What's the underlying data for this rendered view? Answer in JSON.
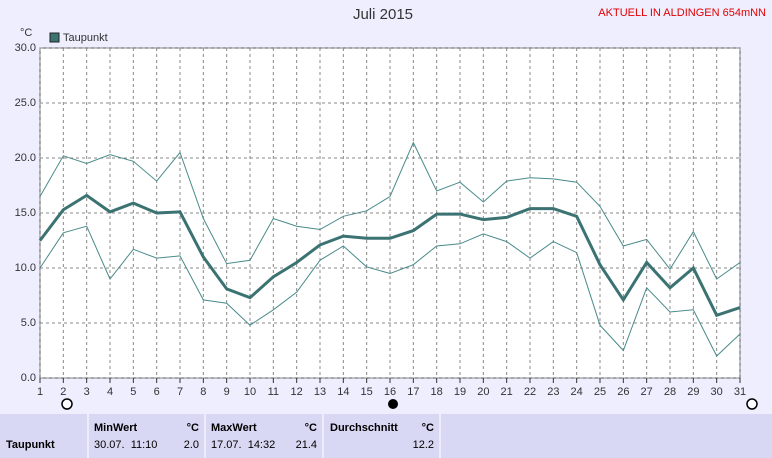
{
  "chart_data": {
    "type": "line",
    "title": "Juli 2015",
    "subtitle": "AKTUELL IN ALDINGEN 654mNN",
    "y_unit": "°C",
    "x": [
      1,
      2,
      3,
      4,
      5,
      6,
      7,
      8,
      9,
      10,
      11,
      12,
      13,
      14,
      15,
      16,
      17,
      18,
      19,
      20,
      21,
      22,
      23,
      24,
      25,
      26,
      27,
      28,
      29,
      30,
      31
    ],
    "xlim": [
      1,
      31
    ],
    "xticks": [
      1,
      2,
      3,
      4,
      5,
      6,
      7,
      8,
      9,
      10,
      11,
      12,
      13,
      14,
      15,
      16,
      17,
      18,
      19,
      20,
      21,
      22,
      23,
      24,
      25,
      26,
      27,
      28,
      29,
      30,
      31
    ],
    "ylim": [
      0,
      30
    ],
    "yticks": [
      {
        "value": 0,
        "label": "0.0"
      },
      {
        "value": 5,
        "label": "5.0"
      },
      {
        "value": 10,
        "label": "10.0"
      },
      {
        "value": 15,
        "label": "15.0"
      },
      {
        "value": 20,
        "label": "20.0"
      },
      {
        "value": 25,
        "label": "25.0"
      },
      {
        "value": 30,
        "label": "30.0"
      }
    ],
    "grid": true,
    "legend": "top-left",
    "series": [
      {
        "name": "Taupunkt",
        "color": "#3b7272",
        "values": [
          12.5,
          15.3,
          16.6,
          15.1,
          15.9,
          15.0,
          15.1,
          11.0,
          8.1,
          7.3,
          9.2,
          10.5,
          12.1,
          12.9,
          12.7,
          12.7,
          13.4,
          14.9,
          14.9,
          14.4,
          14.6,
          15.4,
          15.4,
          14.7,
          10.3,
          7.1,
          10.5,
          8.2,
          10.0,
          5.7,
          6.4
        ]
      },
      {
        "color": "#4a8a8a",
        "values": [
          16.5,
          20.2,
          19.5,
          20.3,
          19.7,
          17.9,
          20.5,
          14.5,
          10.4,
          10.7,
          14.5,
          13.8,
          13.5,
          14.7,
          15.2,
          16.5,
          21.4,
          17.0,
          17.8,
          16.0,
          17.9,
          18.2,
          18.1,
          17.8,
          15.6,
          12.0,
          12.6,
          9.9,
          13.3,
          9.0,
          10.5
        ]
      },
      {
        "color": "#4a8a8a",
        "values": [
          10.0,
          13.2,
          13.8,
          9.0,
          11.7,
          10.9,
          11.1,
          7.1,
          6.8,
          4.8,
          6.2,
          7.8,
          10.7,
          12.0,
          10.1,
          9.5,
          10.3,
          12.0,
          12.2,
          13.1,
          12.4,
          10.9,
          12.4,
          11.4,
          4.8,
          2.5,
          8.2,
          6.0,
          6.2,
          2.0,
          4.0
        ]
      }
    ]
  },
  "table": {
    "header": [
      "MinWert",
      "°C",
      "MaxWert",
      "°C",
      "Durchschnitt",
      "°C"
    ],
    "rows": [
      [
        "Taupunkt",
        "30.07.  11:10",
        "2.0",
        "17.07.  14:32",
        "21.4",
        "12.2"
      ]
    ]
  }
}
